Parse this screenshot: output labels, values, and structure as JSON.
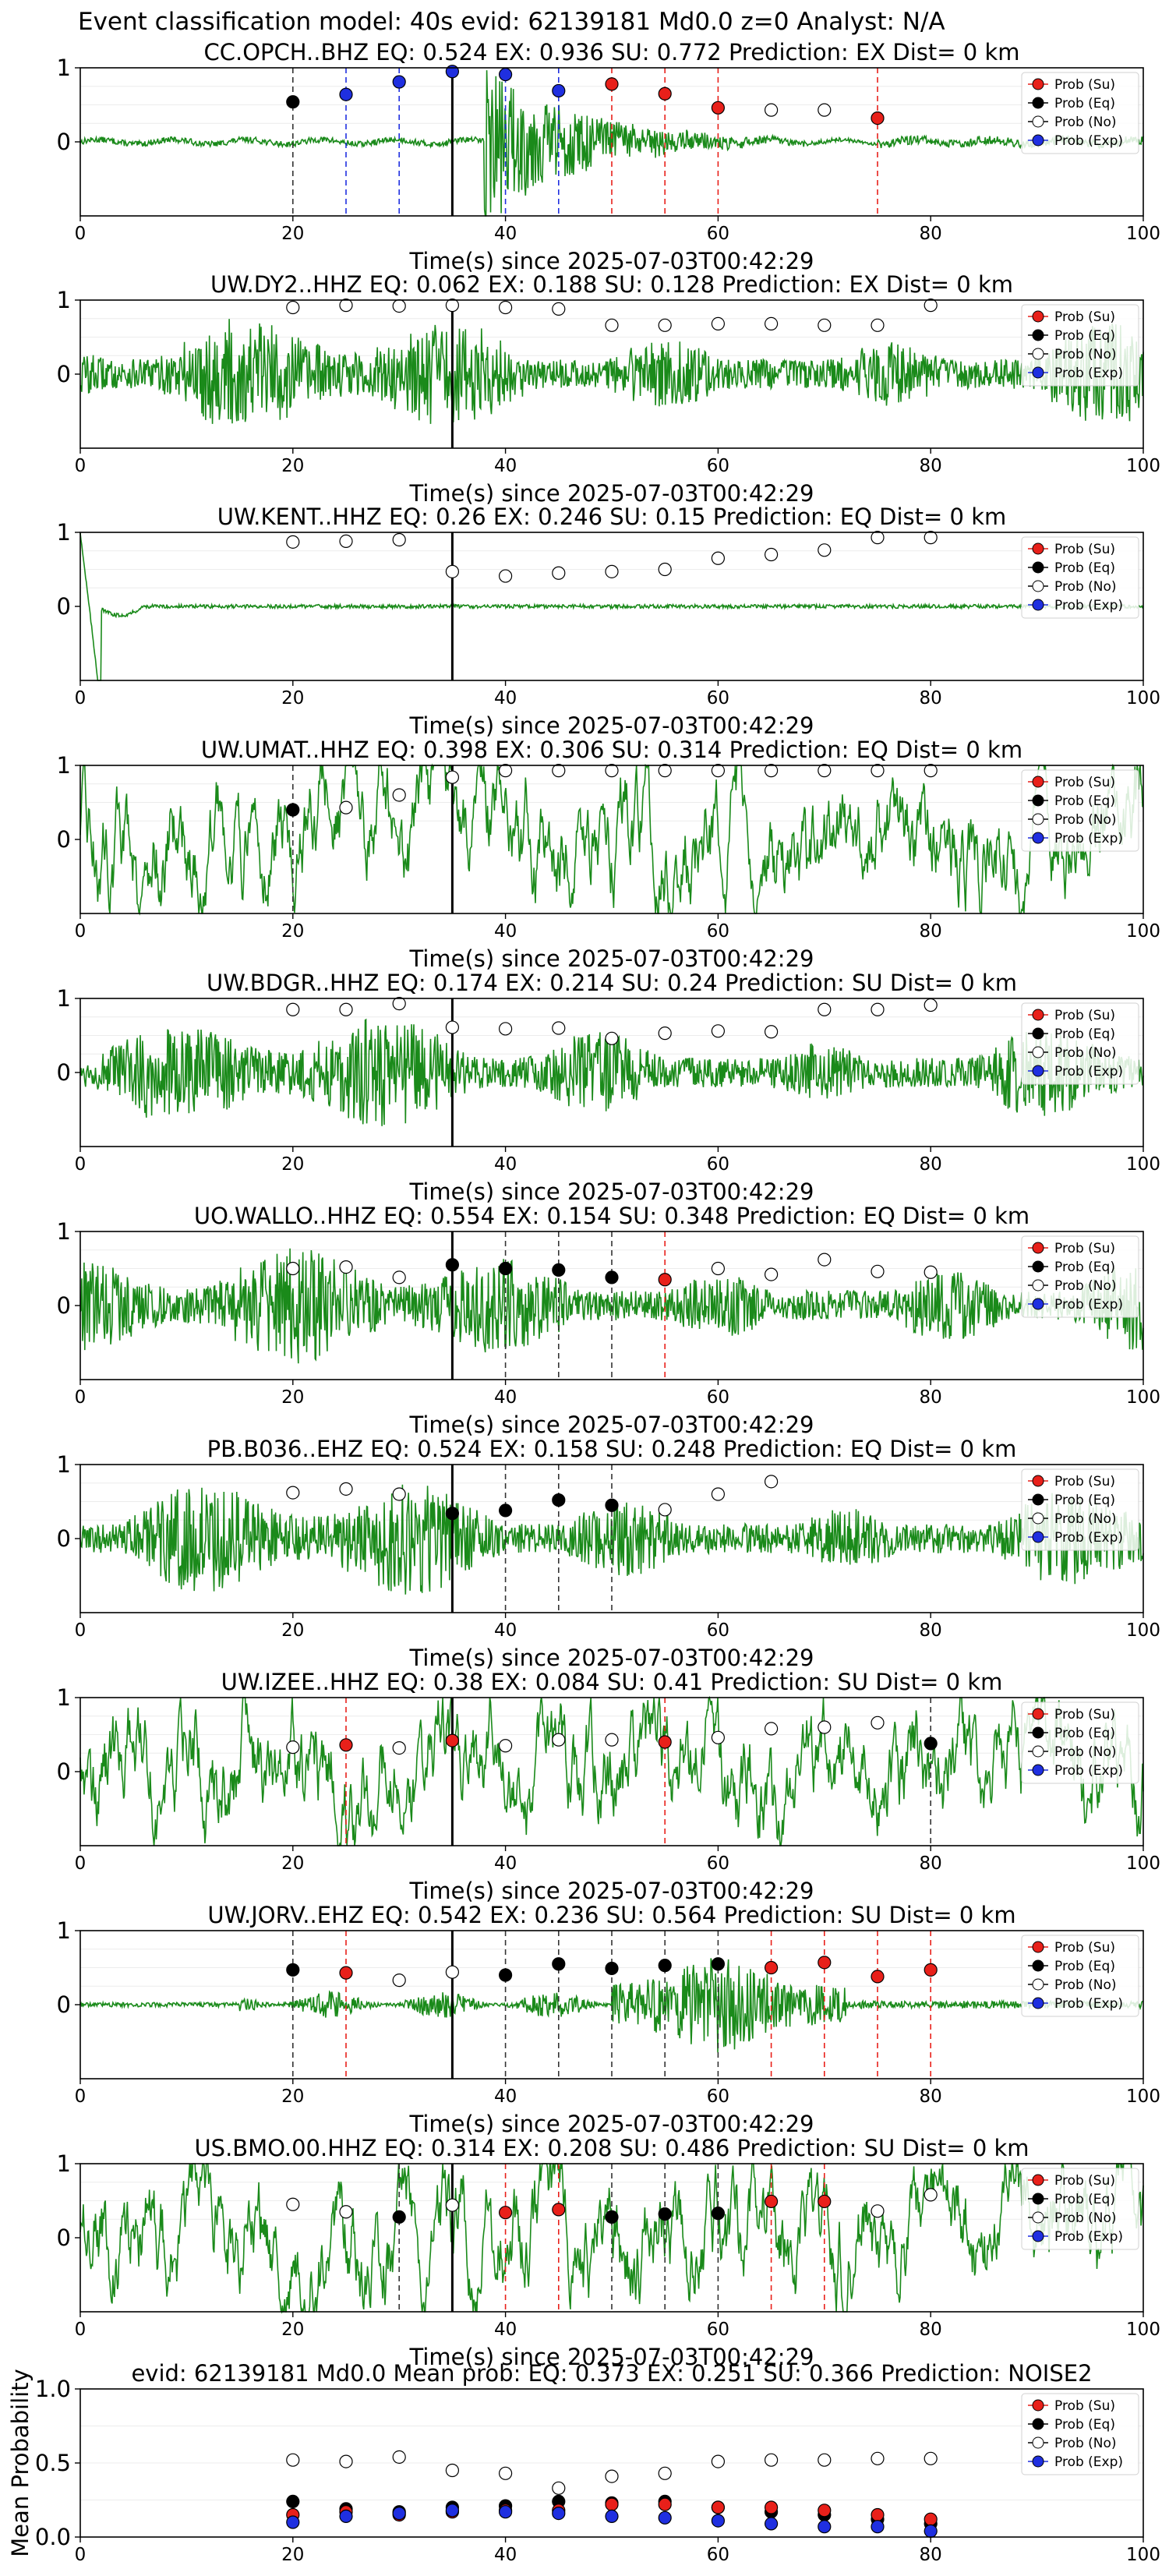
{
  "page_title": "Event classification model: 40s evid: 62139181 Md0.0 z=0 Analyst: N/A",
  "legend": {
    "labels": [
      "Prob (Su)",
      "Prob (Eq)",
      "Prob (No)",
      "Prob (Exp)"
    ],
    "colors": [
      "#e8201a",
      "#000000",
      "#ffffff",
      "#1f2fe0"
    ]
  },
  "colors": {
    "trace": "#1a8a1a",
    "pick_line": "#000000",
    "su_line": "#e8201a",
    "eq_line": "#333333",
    "exp_line": "#1f2fe0"
  },
  "chart_data": [
    {
      "type": "scatter",
      "title": "CC.OPCH..BHZ   EQ: 0.524  EX: 0.936  SU: 0.772   Prediction: EX    Dist= 0 km",
      "xlabel": "Time(s) since 2025-07-03T00:42:29",
      "xlim": [
        0,
        100
      ],
      "ylim": [
        -1,
        1
      ],
      "x_ticks": [
        0,
        20,
        40,
        60,
        80,
        100
      ],
      "y_ticks": [
        0,
        1
      ],
      "waveform": "spike",
      "pick_time": 35,
      "points": [
        {
          "x": 20,
          "class": "Eq",
          "y": 0.54
        },
        {
          "x": 25,
          "class": "Exp",
          "y": 0.64
        },
        {
          "x": 30,
          "class": "Exp",
          "y": 0.81
        },
        {
          "x": 35,
          "class": "Exp",
          "y": 0.95
        },
        {
          "x": 40,
          "class": "Exp",
          "y": 0.91
        },
        {
          "x": 45,
          "class": "Exp",
          "y": 0.69
        },
        {
          "x": 50,
          "class": "Su",
          "y": 0.78
        },
        {
          "x": 55,
          "class": "Su",
          "y": 0.65
        },
        {
          "x": 60,
          "class": "Su",
          "y": 0.46
        },
        {
          "x": 65,
          "class": "No",
          "y": 0.43
        },
        {
          "x": 70,
          "class": "No",
          "y": 0.43
        },
        {
          "x": 75,
          "class": "Su",
          "y": 0.32
        }
      ]
    },
    {
      "type": "scatter",
      "title": "UW.DY2..HHZ   EQ: 0.062  EX: 0.188  SU: 0.128   Prediction: EX    Dist= 0 km",
      "xlabel": "Time(s) since 2025-07-03T00:42:29",
      "xlim": [
        0,
        100
      ],
      "ylim": [
        -1,
        1
      ],
      "x_ticks": [
        0,
        20,
        40,
        60,
        80,
        100
      ],
      "y_ticks": [
        0,
        1
      ],
      "waveform": "noise",
      "pick_time": 35,
      "points": [
        {
          "x": 20,
          "class": "No",
          "y": 0.9
        },
        {
          "x": 25,
          "class": "No",
          "y": 0.93
        },
        {
          "x": 30,
          "class": "No",
          "y": 0.92
        },
        {
          "x": 35,
          "class": "No",
          "y": 0.93
        },
        {
          "x": 40,
          "class": "No",
          "y": 0.9
        },
        {
          "x": 45,
          "class": "No",
          "y": 0.88
        },
        {
          "x": 50,
          "class": "No",
          "y": 0.66
        },
        {
          "x": 55,
          "class": "No",
          "y": 0.66
        },
        {
          "x": 60,
          "class": "No",
          "y": 0.68
        },
        {
          "x": 65,
          "class": "No",
          "y": 0.68
        },
        {
          "x": 70,
          "class": "No",
          "y": 0.66
        },
        {
          "x": 75,
          "class": "No",
          "y": 0.66
        },
        {
          "x": 80,
          "class": "No",
          "y": 0.93
        }
      ]
    },
    {
      "type": "scatter",
      "title": "UW.KENT..HHZ   EQ: 0.26  EX: 0.246  SU: 0.15   Prediction: EQ    Dist= 0 km",
      "xlabel": "Time(s) since 2025-07-03T00:42:29",
      "xlim": [
        0,
        100
      ],
      "ylim": [
        -1,
        1
      ],
      "x_ticks": [
        0,
        20,
        40,
        60,
        80,
        100
      ],
      "y_ticks": [
        0,
        1
      ],
      "waveform": "flat",
      "pick_time": 35,
      "points": [
        {
          "x": 20,
          "class": "No",
          "y": 0.87
        },
        {
          "x": 25,
          "class": "No",
          "y": 0.88
        },
        {
          "x": 30,
          "class": "No",
          "y": 0.9
        },
        {
          "x": 35,
          "class": "No",
          "y": 0.47
        },
        {
          "x": 40,
          "class": "No",
          "y": 0.41
        },
        {
          "x": 45,
          "class": "No",
          "y": 0.45
        },
        {
          "x": 50,
          "class": "No",
          "y": 0.47
        },
        {
          "x": 55,
          "class": "No",
          "y": 0.5
        },
        {
          "x": 60,
          "class": "No",
          "y": 0.65
        },
        {
          "x": 65,
          "class": "No",
          "y": 0.7
        },
        {
          "x": 70,
          "class": "No",
          "y": 0.76
        },
        {
          "x": 75,
          "class": "No",
          "y": 0.93
        },
        {
          "x": 80,
          "class": "No",
          "y": 0.93
        }
      ]
    },
    {
      "type": "scatter",
      "title": "UW.UMAT..HHZ   EQ: 0.398  EX: 0.306  SU: 0.314   Prediction: EQ    Dist= 0 km",
      "xlabel": "Time(s) since 2025-07-03T00:42:29",
      "xlim": [
        0,
        100
      ],
      "ylim": [
        -1,
        1
      ],
      "x_ticks": [
        0,
        20,
        40,
        60,
        80,
        100
      ],
      "y_ticks": [
        0,
        1
      ],
      "waveform": "wave",
      "pick_time": 35,
      "points": [
        {
          "x": 20,
          "class": "Eq",
          "y": 0.4
        },
        {
          "x": 25,
          "class": "No",
          "y": 0.43
        },
        {
          "x": 30,
          "class": "No",
          "y": 0.6
        },
        {
          "x": 35,
          "class": "No",
          "y": 0.84
        },
        {
          "x": 40,
          "class": "No",
          "y": 0.93
        },
        {
          "x": 45,
          "class": "No",
          "y": 0.93
        },
        {
          "x": 50,
          "class": "No",
          "y": 0.93
        },
        {
          "x": 55,
          "class": "No",
          "y": 0.93
        },
        {
          "x": 60,
          "class": "No",
          "y": 0.93
        },
        {
          "x": 65,
          "class": "No",
          "y": 0.93
        },
        {
          "x": 70,
          "class": "No",
          "y": 0.93
        },
        {
          "x": 75,
          "class": "No",
          "y": 0.93
        },
        {
          "x": 80,
          "class": "No",
          "y": 0.93
        }
      ]
    },
    {
      "type": "scatter",
      "title": "UW.BDGR..HHZ   EQ: 0.174  EX: 0.214  SU: 0.24   Prediction: SU    Dist= 0 km",
      "xlabel": "Time(s) since 2025-07-03T00:42:29",
      "xlim": [
        0,
        100
      ],
      "ylim": [
        -1,
        1
      ],
      "x_ticks": [
        0,
        20,
        40,
        60,
        80,
        100
      ],
      "y_ticks": [
        0,
        1
      ],
      "waveform": "noise",
      "pick_time": 35,
      "points": [
        {
          "x": 20,
          "class": "No",
          "y": 0.85
        },
        {
          "x": 25,
          "class": "No",
          "y": 0.85
        },
        {
          "x": 30,
          "class": "No",
          "y": 0.93
        },
        {
          "x": 35,
          "class": "No",
          "y": 0.61
        },
        {
          "x": 40,
          "class": "No",
          "y": 0.59
        },
        {
          "x": 45,
          "class": "No",
          "y": 0.6
        },
        {
          "x": 50,
          "class": "No",
          "y": 0.46
        },
        {
          "x": 55,
          "class": "No",
          "y": 0.53
        },
        {
          "x": 60,
          "class": "No",
          "y": 0.56
        },
        {
          "x": 65,
          "class": "No",
          "y": 0.55
        },
        {
          "x": 70,
          "class": "No",
          "y": 0.85
        },
        {
          "x": 75,
          "class": "No",
          "y": 0.85
        },
        {
          "x": 80,
          "class": "No",
          "y": 0.91
        }
      ]
    },
    {
      "type": "scatter",
      "title": "UO.WALLO..HHZ   EQ: 0.554  EX: 0.154  SU: 0.348   Prediction: EQ    Dist= 0 km",
      "xlabel": "Time(s) since 2025-07-03T00:42:29",
      "xlim": [
        0,
        100
      ],
      "ylim": [
        -1,
        1
      ],
      "x_ticks": [
        0,
        20,
        40,
        60,
        80,
        100
      ],
      "y_ticks": [
        0,
        1
      ],
      "waveform": "noise",
      "pick_time": 35,
      "points": [
        {
          "x": 20,
          "class": "No",
          "y": 0.5
        },
        {
          "x": 25,
          "class": "No",
          "y": 0.52
        },
        {
          "x": 30,
          "class": "No",
          "y": 0.38
        },
        {
          "x": 35,
          "class": "Eq",
          "y": 0.55
        },
        {
          "x": 40,
          "class": "Eq",
          "y": 0.5
        },
        {
          "x": 45,
          "class": "Eq",
          "y": 0.48
        },
        {
          "x": 50,
          "class": "Eq",
          "y": 0.38
        },
        {
          "x": 55,
          "class": "Su",
          "y": 0.35
        },
        {
          "x": 60,
          "class": "No",
          "y": 0.5
        },
        {
          "x": 65,
          "class": "No",
          "y": 0.42
        },
        {
          "x": 70,
          "class": "No",
          "y": 0.62
        },
        {
          "x": 75,
          "class": "No",
          "y": 0.46
        },
        {
          "x": 80,
          "class": "No",
          "y": 0.45
        }
      ]
    },
    {
      "type": "scatter",
      "title": "PB.B036..EHZ   EQ: 0.524  EX: 0.158  SU: 0.248   Prediction: EQ    Dist= 0 km",
      "xlabel": "Time(s) since 2025-07-03T00:42:29",
      "xlim": [
        0,
        100
      ],
      "ylim": [
        -1,
        1
      ],
      "x_ticks": [
        0,
        20,
        40,
        60,
        80,
        100
      ],
      "y_ticks": [
        0,
        1
      ],
      "waveform": "noise",
      "pick_time": 35,
      "points": [
        {
          "x": 20,
          "class": "No",
          "y": 0.62
        },
        {
          "x": 25,
          "class": "No",
          "y": 0.67
        },
        {
          "x": 30,
          "class": "No",
          "y": 0.6
        },
        {
          "x": 35,
          "class": "Eq",
          "y": 0.34
        },
        {
          "x": 40,
          "class": "Eq",
          "y": 0.38
        },
        {
          "x": 45,
          "class": "Eq",
          "y": 0.52
        },
        {
          "x": 50,
          "class": "Eq",
          "y": 0.45
        },
        {
          "x": 55,
          "class": "No",
          "y": 0.39
        },
        {
          "x": 60,
          "class": "No",
          "y": 0.6
        },
        {
          "x": 65,
          "class": "No",
          "y": 0.77
        }
      ]
    },
    {
      "type": "scatter",
      "title": "UW.IZEE..HHZ   EQ: 0.38  EX: 0.084  SU: 0.41   Prediction: SU    Dist= 0 km",
      "xlabel": "Time(s) since 2025-07-03T00:42:29",
      "xlim": [
        0,
        100
      ],
      "ylim": [
        -1,
        1
      ],
      "x_ticks": [
        0,
        20,
        40,
        60,
        80,
        100
      ],
      "y_ticks": [
        0,
        1
      ],
      "waveform": "wave",
      "pick_time": 35,
      "points": [
        {
          "x": 20,
          "class": "No",
          "y": 0.33
        },
        {
          "x": 25,
          "class": "Su",
          "y": 0.36
        },
        {
          "x": 30,
          "class": "No",
          "y": 0.32
        },
        {
          "x": 35,
          "class": "Su",
          "y": 0.42
        },
        {
          "x": 40,
          "class": "No",
          "y": 0.35
        },
        {
          "x": 45,
          "class": "No",
          "y": 0.43
        },
        {
          "x": 50,
          "class": "No",
          "y": 0.43
        },
        {
          "x": 55,
          "class": "Su",
          "y": 0.4
        },
        {
          "x": 60,
          "class": "No",
          "y": 0.46
        },
        {
          "x": 65,
          "class": "No",
          "y": 0.58
        },
        {
          "x": 70,
          "class": "No",
          "y": 0.6
        },
        {
          "x": 75,
          "class": "No",
          "y": 0.66
        },
        {
          "x": 80,
          "class": "Eq",
          "y": 0.38
        }
      ]
    },
    {
      "type": "scatter",
      "title": "UW.JORV..EHZ   EQ: 0.542  EX: 0.236  SU: 0.564   Prediction: SU    Dist= 0 km",
      "xlabel": "Time(s) since 2025-07-03T00:42:29",
      "xlim": [
        0,
        100
      ],
      "ylim": [
        -1,
        1
      ],
      "x_ticks": [
        0,
        20,
        40,
        60,
        80,
        100
      ],
      "y_ticks": [
        0,
        1
      ],
      "waveform": "quiet_burst",
      "pick_time": 35,
      "points": [
        {
          "x": 20,
          "class": "Eq",
          "y": 0.47
        },
        {
          "x": 25,
          "class": "Su",
          "y": 0.43
        },
        {
          "x": 30,
          "class": "No",
          "y": 0.33
        },
        {
          "x": 35,
          "class": "No",
          "y": 0.44
        },
        {
          "x": 40,
          "class": "Eq",
          "y": 0.4
        },
        {
          "x": 45,
          "class": "Eq",
          "y": 0.55
        },
        {
          "x": 50,
          "class": "Eq",
          "y": 0.49
        },
        {
          "x": 55,
          "class": "Eq",
          "y": 0.53
        },
        {
          "x": 60,
          "class": "Eq",
          "y": 0.55
        },
        {
          "x": 65,
          "class": "Su",
          "y": 0.5
        },
        {
          "x": 70,
          "class": "Su",
          "y": 0.57
        },
        {
          "x": 75,
          "class": "Su",
          "y": 0.38
        },
        {
          "x": 80,
          "class": "Su",
          "y": 0.47
        }
      ]
    },
    {
      "type": "scatter",
      "title": "US.BMO.00.HHZ   EQ: 0.314  EX: 0.208  SU: 0.486   Prediction: SU    Dist= 0 km",
      "xlabel": "Time(s) since 2025-07-03T00:42:29",
      "xlim": [
        0,
        100
      ],
      "ylim": [
        -1,
        1
      ],
      "x_ticks": [
        0,
        20,
        40,
        60,
        80,
        100
      ],
      "y_ticks": [
        0,
        1
      ],
      "waveform": "wave",
      "pick_time": 35,
      "points": [
        {
          "x": 20,
          "class": "No",
          "y": 0.45
        },
        {
          "x": 25,
          "class": "No",
          "y": 0.35
        },
        {
          "x": 30,
          "class": "Eq",
          "y": 0.28
        },
        {
          "x": 35,
          "class": "No",
          "y": 0.44
        },
        {
          "x": 40,
          "class": "Su",
          "y": 0.34
        },
        {
          "x": 45,
          "class": "Su",
          "y": 0.38
        },
        {
          "x": 50,
          "class": "Eq",
          "y": 0.28
        },
        {
          "x": 55,
          "class": "Eq",
          "y": 0.32
        },
        {
          "x": 60,
          "class": "Eq",
          "y": 0.33
        },
        {
          "x": 65,
          "class": "Su",
          "y": 0.49
        },
        {
          "x": 70,
          "class": "Su",
          "y": 0.49
        },
        {
          "x": 75,
          "class": "No",
          "y": 0.36
        },
        {
          "x": 80,
          "class": "No",
          "y": 0.58
        }
      ]
    },
    {
      "type": "scatter",
      "title": "evid: 62139181  Md0.0   Mean prob:   EQ: 0.373  EX: 0.251  SU: 0.366   Prediction: NOISE2",
      "ylabel": "Mean Probability",
      "xlim": [
        0,
        100
      ],
      "ylim": [
        0,
        1
      ],
      "x_ticks": [
        0,
        20,
        40,
        60,
        80,
        100
      ],
      "y_ticks": [
        0.0,
        0.5,
        1.0
      ],
      "y_tick_labels": [
        "0.0",
        "0.5",
        "1.0"
      ],
      "series": [
        {
          "name": "Prob (Su)",
          "x": [
            20,
            25,
            30,
            35,
            40,
            45,
            50,
            55,
            60,
            65,
            70,
            75,
            80
          ],
          "y": [
            0.15,
            0.17,
            0.15,
            0.17,
            0.18,
            0.18,
            0.22,
            0.22,
            0.2,
            0.2,
            0.18,
            0.15,
            0.12
          ]
        },
        {
          "name": "Prob (Eq)",
          "x": [
            20,
            25,
            30,
            35,
            40,
            45,
            50,
            55,
            60,
            65,
            70,
            75,
            80
          ],
          "y": [
            0.24,
            0.19,
            0.17,
            0.2,
            0.21,
            0.24,
            0.23,
            0.24,
            0.2,
            0.17,
            0.15,
            0.12,
            0.09
          ]
        },
        {
          "name": "Prob (No)",
          "x": [
            20,
            25,
            30,
            35,
            40,
            45,
            50,
            55,
            60,
            65,
            70,
            75,
            80
          ],
          "y": [
            0.52,
            0.51,
            0.54,
            0.45,
            0.43,
            0.33,
            0.41,
            0.43,
            0.51,
            0.52,
            0.52,
            0.53,
            0.53
          ]
        },
        {
          "name": "Prob (Exp)",
          "x": [
            20,
            25,
            30,
            35,
            40,
            45,
            50,
            55,
            60,
            65,
            70,
            75,
            80
          ],
          "y": [
            0.1,
            0.14,
            0.16,
            0.18,
            0.17,
            0.16,
            0.14,
            0.13,
            0.11,
            0.09,
            0.07,
            0.07,
            0.04
          ]
        }
      ]
    }
  ]
}
